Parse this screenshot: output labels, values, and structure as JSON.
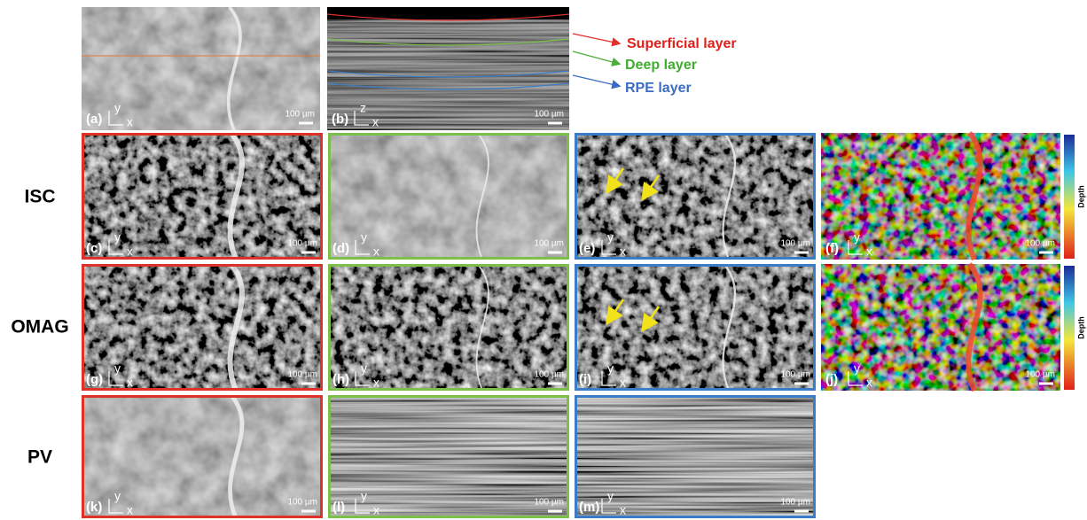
{
  "row_labels": [
    "ISC",
    "OMAG",
    "PV"
  ],
  "layer_legend": [
    "Superficial layer",
    "Deep layer",
    "RPE layer"
  ],
  "colorbar_label": "Depth",
  "panels": [
    {
      "label": "(a)",
      "axes": [
        "y",
        "x"
      ],
      "scale_bar": "100 µm"
    },
    {
      "label": "(b)",
      "axes": [
        "z",
        "x"
      ],
      "scale_bar": "100 µm"
    },
    {
      "label": "(c)",
      "axes": [
        "y",
        "x"
      ],
      "scale_bar": "100 µm"
    },
    {
      "label": "(d)",
      "axes": [
        "y",
        "x"
      ],
      "scale_bar": "100 µm"
    },
    {
      "label": "(e)",
      "axes": [
        "y",
        "x"
      ],
      "scale_bar": "100 µm"
    },
    {
      "label": "(f)",
      "axes": [
        "y",
        "x"
      ],
      "scale_bar": "100 µm"
    },
    {
      "label": "(g)",
      "axes": [
        "y",
        "x"
      ],
      "scale_bar": "100 µm"
    },
    {
      "label": "(h)",
      "axes": [
        "y",
        "x"
      ],
      "scale_bar": "100 µm"
    },
    {
      "label": "(i)",
      "axes": [
        "y",
        "x"
      ],
      "scale_bar": "100 µm"
    },
    {
      "label": "(j)",
      "axes": [
        "y",
        "x"
      ],
      "scale_bar": "100 µm"
    },
    {
      "label": "(k)",
      "axes": [
        "y",
        "x"
      ],
      "scale_bar": "100 µm"
    },
    {
      "label": "(l)",
      "axes": [
        "y",
        "x"
      ],
      "scale_bar": "100 µm"
    },
    {
      "label": "(m)",
      "axes": [
        "y",
        "x"
      ],
      "scale_bar": "100 µm"
    }
  ]
}
